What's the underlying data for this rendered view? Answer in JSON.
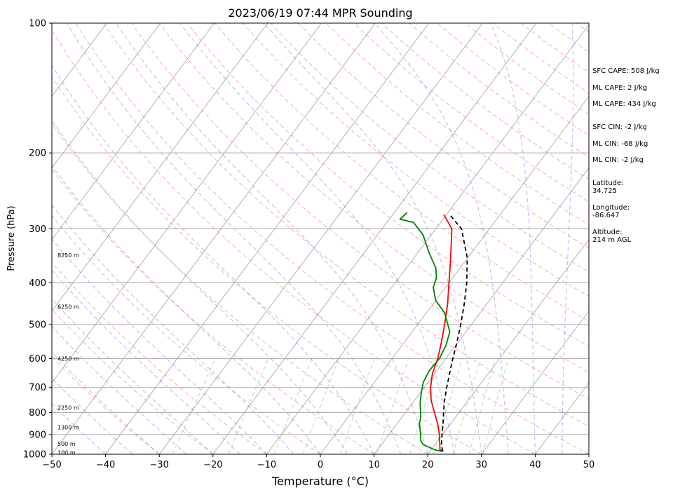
{
  "chart_data": {
    "type": "line",
    "title": "2023/06/19 07:44 MPR Sounding",
    "xlabel": "Temperature (°C)",
    "ylabel": "Pressure (hPa)",
    "xlim": [
      -50,
      50
    ],
    "ylim": [
      1000,
      100
    ],
    "y_scale": "log",
    "grid": true,
    "x_ticks": [
      -50,
      -40,
      -30,
      -20,
      -10,
      0,
      10,
      20,
      30,
      40,
      50
    ],
    "x_tick_labels": [
      "−50",
      "−40",
      "−30",
      "−20",
      "−10",
      "0",
      "10",
      "20",
      "30",
      "40",
      "50"
    ],
    "y_ticks": [
      1000,
      900,
      800,
      700,
      600,
      500,
      400,
      300,
      200,
      100
    ],
    "height_labels": [
      {
        "p": 990,
        "text": "100 m"
      },
      {
        "p": 945,
        "text": "500 m"
      },
      {
        "p": 865,
        "text": "1300 m"
      },
      {
        "p": 780,
        "text": "2250 m"
      },
      {
        "p": 600,
        "text": "4250 m"
      },
      {
        "p": 455,
        "text": "6250 m"
      },
      {
        "p": 345,
        "text": "8250 m"
      }
    ],
    "series": [
      {
        "color": "#ff0000",
        "points": [
          [
            985,
            22.4
          ],
          [
            975,
            21.6
          ],
          [
            950,
            20.9
          ],
          [
            900,
            19.4
          ],
          [
            850,
            17.6
          ],
          [
            800,
            15.4
          ],
          [
            750,
            13.1
          ],
          [
            700,
            11.2
          ],
          [
            650,
            9.6
          ],
          [
            600,
            8.5
          ],
          [
            550,
            6.9
          ],
          [
            500,
            5.0
          ],
          [
            450,
            2.8
          ],
          [
            400,
            0.0
          ],
          [
            350,
            -3.2
          ],
          [
            300,
            -7.0
          ],
          [
            278,
            -10.5
          ]
        ]
      },
      {
        "color": "#008000",
        "points": [
          [
            985,
            22.2
          ],
          [
            975,
            20.5
          ],
          [
            950,
            17.8
          ],
          [
            930,
            16.8
          ],
          [
            900,
            15.9
          ],
          [
            850,
            14.2
          ],
          [
            820,
            13.5
          ],
          [
            760,
            11.4
          ],
          [
            720,
            10.2
          ],
          [
            680,
            9.1
          ],
          [
            640,
            8.6
          ],
          [
            600,
            8.8
          ],
          [
            560,
            8.2
          ],
          [
            520,
            7.0
          ],
          [
            500,
            5.6
          ],
          [
            470,
            3.4
          ],
          [
            440,
            0.0
          ],
          [
            410,
            -2.3
          ],
          [
            390,
            -3.0
          ],
          [
            370,
            -4.5
          ],
          [
            340,
            -8.0
          ],
          [
            310,
            -11.5
          ],
          [
            290,
            -15.0
          ],
          [
            285,
            -18.0
          ],
          [
            275,
            -17.6
          ]
        ]
      },
      {
        "color": "#000000",
        "dashed": true,
        "points": [
          [
            985,
            22.4
          ],
          [
            950,
            21.2
          ],
          [
            900,
            19.9
          ],
          [
            850,
            18.6
          ],
          [
            800,
            17.1
          ],
          [
            750,
            15.6
          ],
          [
            700,
            14.2
          ],
          [
            650,
            12.8
          ],
          [
            600,
            11.3
          ],
          [
            550,
            9.8
          ],
          [
            500,
            8.0
          ],
          [
            450,
            5.9
          ],
          [
            400,
            3.3
          ],
          [
            350,
            -0.1
          ],
          [
            300,
            -5.2
          ],
          [
            278,
            -9.4
          ]
        ]
      }
    ],
    "side_text": [
      "SFC CAPE: 508 J/kg",
      "ML CAPE: 2 J/kg",
      "ML CAPE: 434 J/kg",
      "SFC CIN: -2 J/kg",
      "ML CIN: -68 J/kg",
      "ML CIN: -2 J/kg",
      "Latitude:\n34.725",
      "Longitude:\n-86.647",
      "Altitude:\n214 m AGL"
    ]
  }
}
